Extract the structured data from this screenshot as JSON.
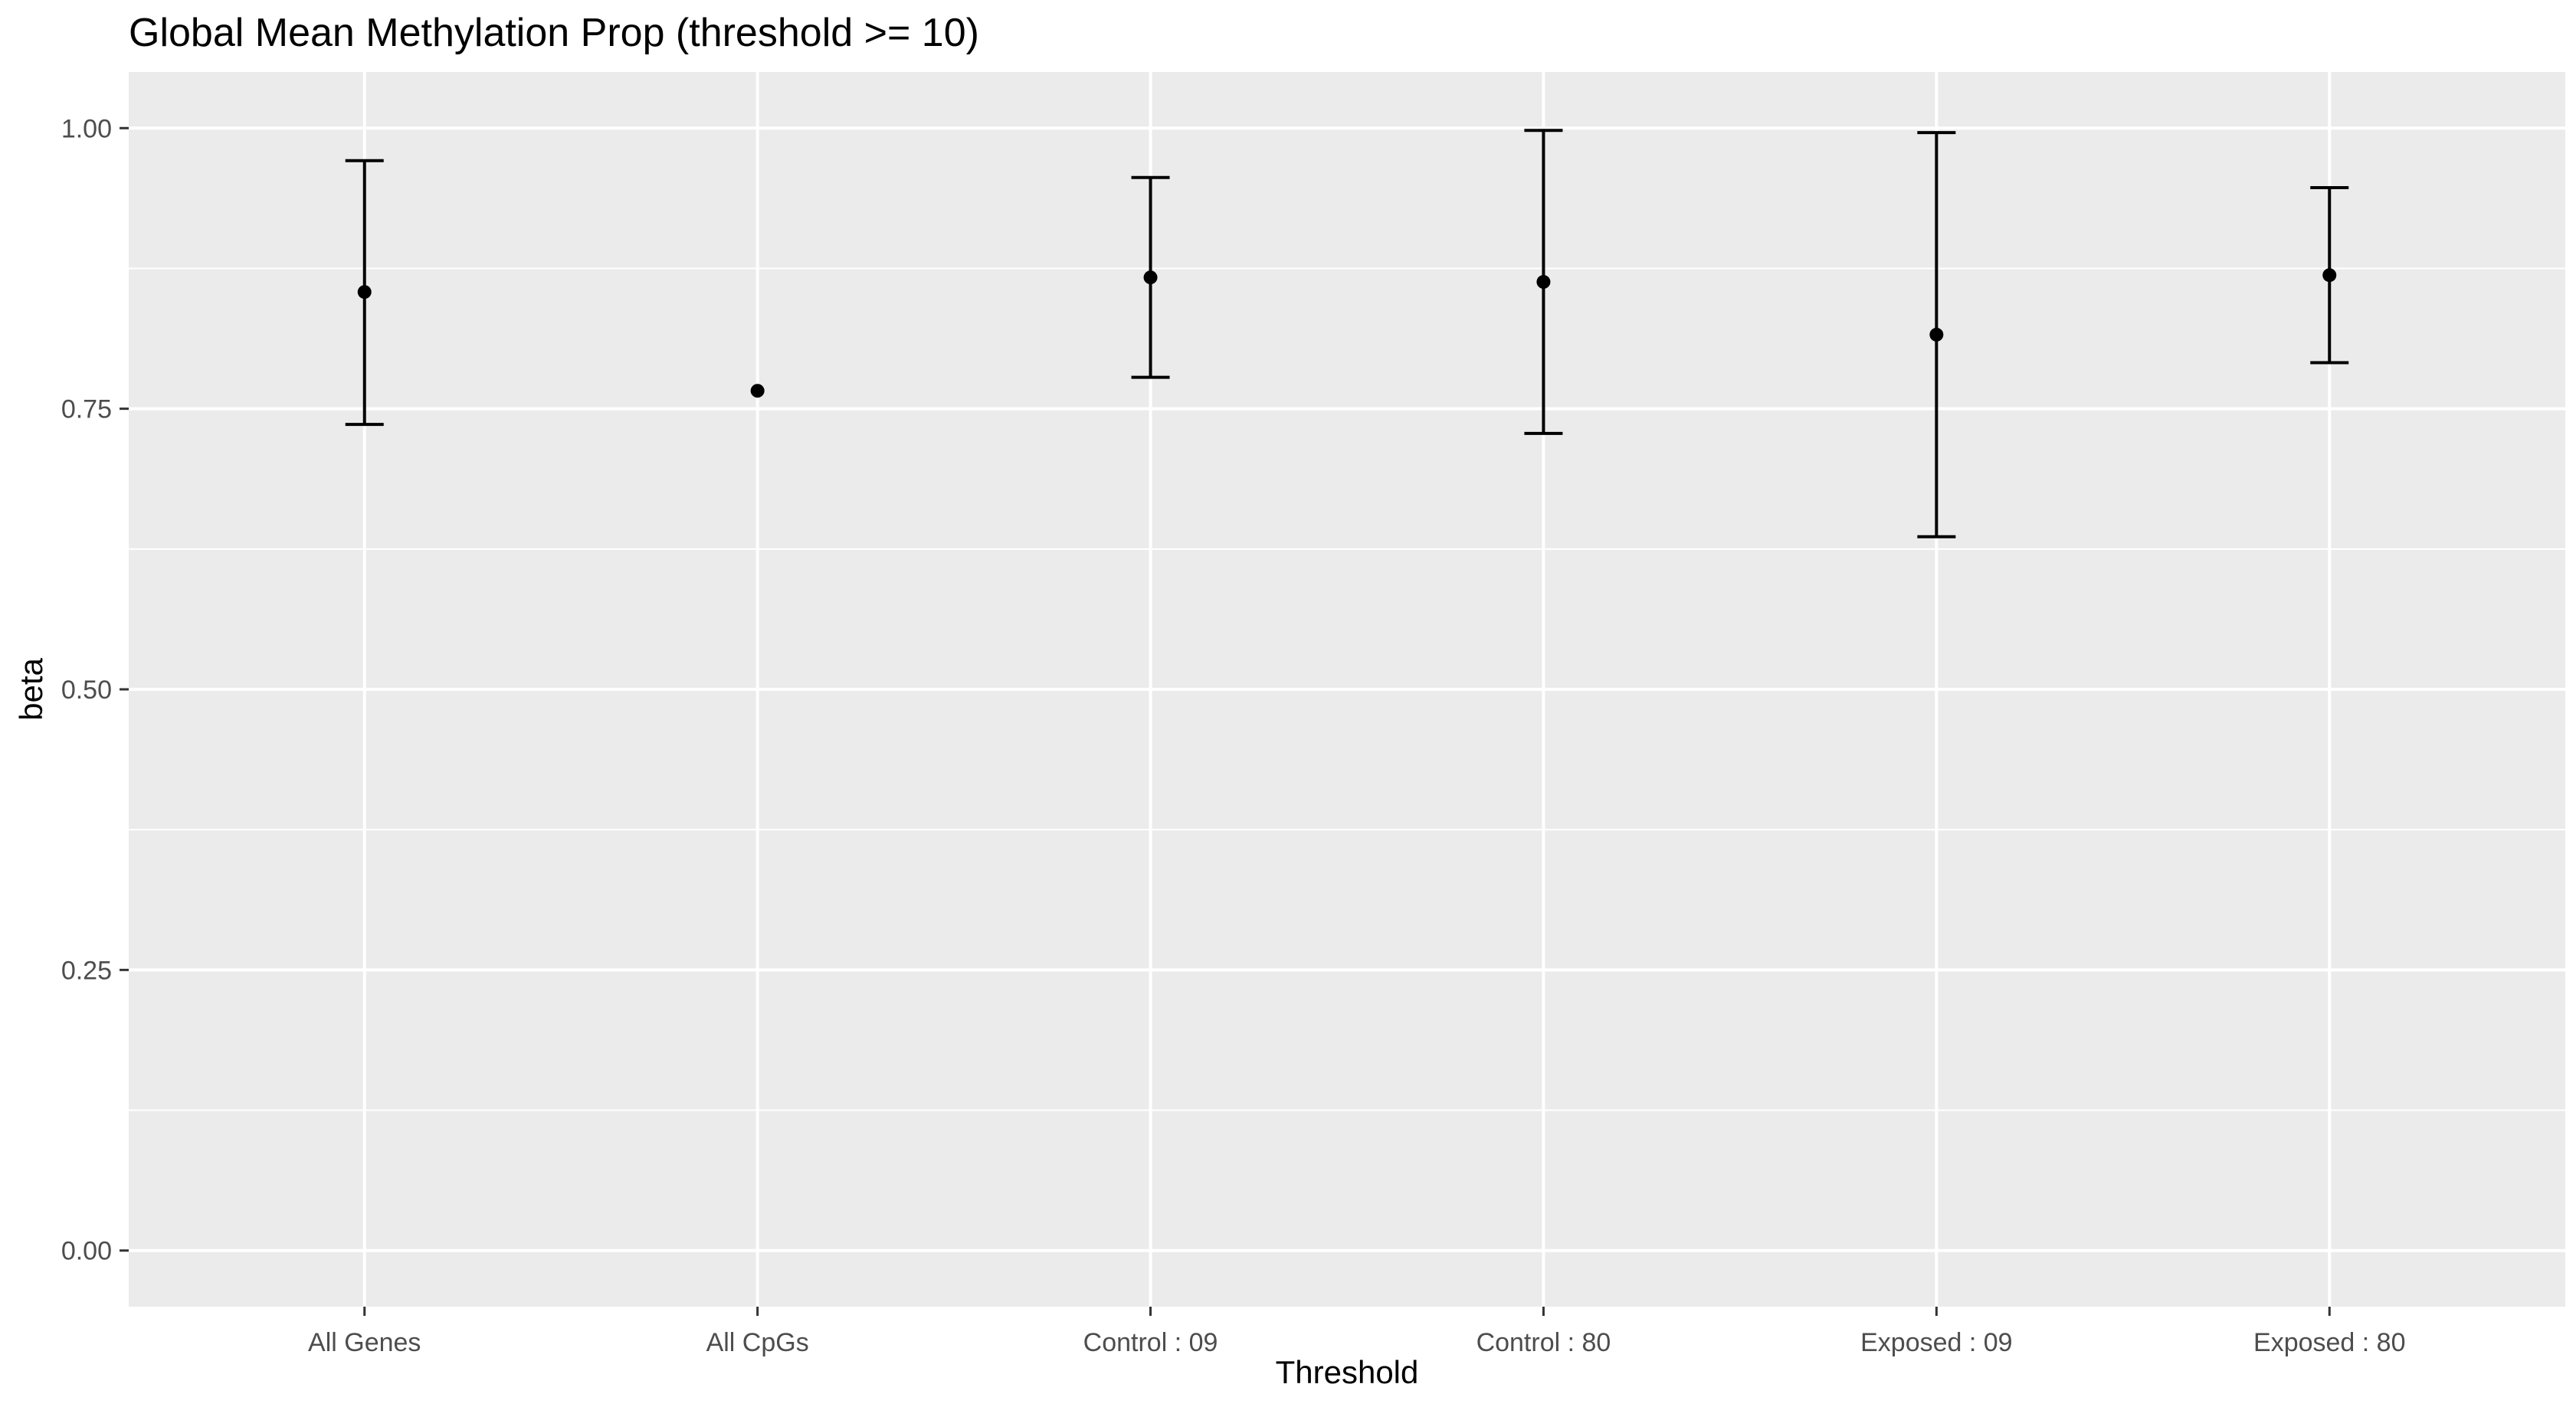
{
  "chart_data": {
    "type": "scatter",
    "title": "Global Mean Methylation Prop (threshold >= 10)",
    "xlabel": "Threshold",
    "ylabel": "beta",
    "categories": [
      "All Genes",
      "All CpGs",
      "Control : 09",
      "Control : 80",
      "Exposed : 09",
      "Exposed : 80"
    ],
    "points": [
      {
        "category": "All Genes",
        "mean": 0.854,
        "lower": 0.736,
        "upper": 0.971
      },
      {
        "category": "All CpGs",
        "mean": 0.766,
        "lower": null,
        "upper": null
      },
      {
        "category": "Control : 09",
        "mean": 0.867,
        "lower": 0.778,
        "upper": 0.956
      },
      {
        "category": "Control : 80",
        "mean": 0.863,
        "lower": 0.728,
        "upper": 0.998
      },
      {
        "category": "Exposed : 09",
        "mean": 0.816,
        "lower": 0.636,
        "upper": 0.996
      },
      {
        "category": "Exposed : 80",
        "mean": 0.869,
        "lower": 0.791,
        "upper": 0.947
      }
    ],
    "yticks": [
      0,
      0.25,
      0.5,
      0.75,
      1
    ],
    "ytick_labels": [
      "0.00",
      "0.25",
      "0.50",
      "0.75",
      "1.00"
    ],
    "ylim": [
      -0.05,
      1.05
    ],
    "grid": true,
    "panel_color": "#ebebeb",
    "grid_color": "#ffffff",
    "point_color": "#000000",
    "errorbar_color": "#000000"
  }
}
